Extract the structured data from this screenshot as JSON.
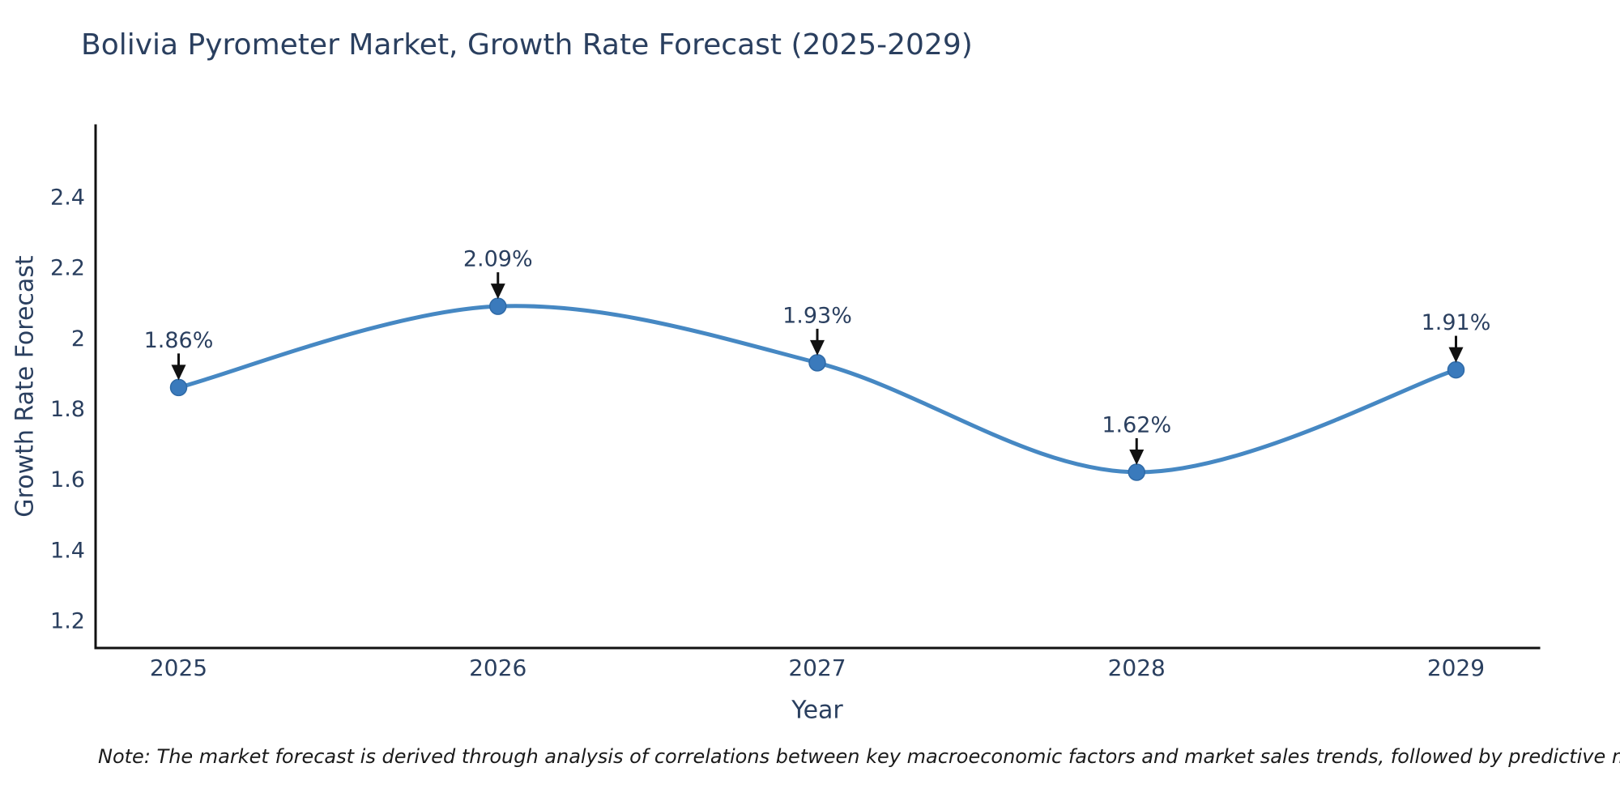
{
  "page": {
    "note": "Note: The market forecast is derived through analysis of correlations between key macroeconomic factors and market sales trends, followed by predictive modeling to project future sales"
  },
  "chart_data": {
    "type": "line",
    "line_shape": "spline",
    "title": "Bolivia Pyrometer Market, Growth Rate Forecast (2025-2029)",
    "xlabel": "Year",
    "ylabel": "Growth Rate Forecast",
    "x": [
      2025,
      2026,
      2027,
      2028,
      2029
    ],
    "y": [
      1.86,
      2.09,
      1.93,
      1.62,
      1.91
    ],
    "point_labels": [
      "1.86%",
      "2.09%",
      "1.93%",
      "1.62%",
      "1.91%"
    ],
    "xticks": {
      "values": [
        2025,
        2026,
        2027,
        2028,
        2029
      ],
      "labels": [
        "2025",
        "2026",
        "2027",
        "2028",
        "2029"
      ]
    },
    "yticks": {
      "values": [
        1.2,
        1.4,
        1.6,
        1.8,
        2.0,
        2.2,
        2.4
      ],
      "labels": [
        "1.2",
        "1.4",
        "1.6",
        "1.8",
        "2",
        "2.2",
        "2.4"
      ]
    },
    "xlim": [
      2024.74,
      2029.26
    ],
    "ylim": [
      1.122,
      2.602
    ],
    "grid": false,
    "legend": "none",
    "colors": {
      "line": "#4688c3",
      "marker": "#3a7abc",
      "marker_edge": "#2f6aa7",
      "arrow": "#111111",
      "axis": "#111111",
      "text": "#2a3f5f",
      "note": "#1a1a1a"
    }
  }
}
